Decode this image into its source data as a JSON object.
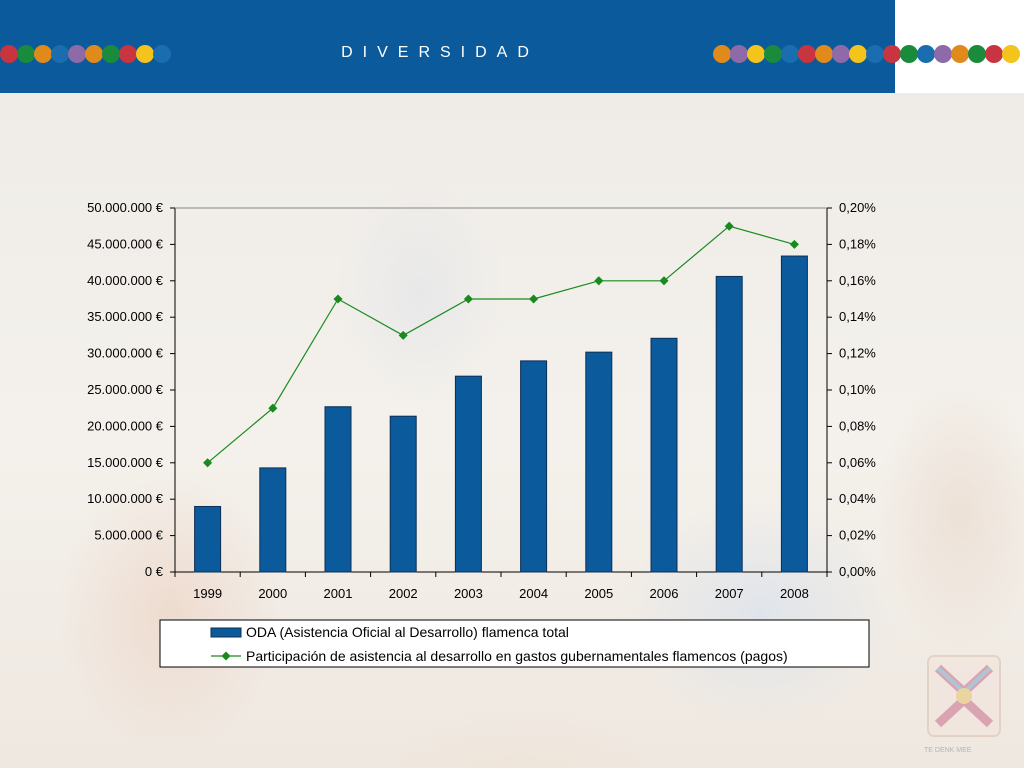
{
  "slide": {
    "title": "DIVERSIDAD",
    "dot_colors_left": [
      "#c8343f",
      "#1a8a3c",
      "#e08a1c",
      "#1a6eb0",
      "#8e6aa8",
      "#e08a1c",
      "#1a8a3c",
      "#c8343f",
      "#f4c31c",
      "#1a6eb0"
    ],
    "dot_colors_right": [
      "#e08a1c",
      "#8e6aa8",
      "#f4c31c",
      "#1a8a3c",
      "#1a6eb0",
      "#c8343f",
      "#e08a1c",
      "#8e6aa8",
      "#f4c31c",
      "#1a6eb0",
      "#c8343f",
      "#1a8a3c",
      "#1a6eb0",
      "#8e6aa8",
      "#e08a1c",
      "#1a8a3c",
      "#c8343f",
      "#f4c31c"
    ],
    "header_color": "#0a5a9c"
  },
  "chart_data": {
    "type": "bar",
    "categories": [
      "1999",
      "2000",
      "2001",
      "2002",
      "2003",
      "2004",
      "2005",
      "2006",
      "2007",
      "2008"
    ],
    "series": [
      {
        "name": "ODA (Asistencia Oficial al Desarrollo) flamenca total",
        "kind": "bar",
        "axis": "left",
        "color": "#0a5a9c",
        "values": [
          9000000,
          14300000,
          22700000,
          21400000,
          26900000,
          29000000,
          30200000,
          32100000,
          40600000,
          43400000
        ]
      },
      {
        "name": "Participación de asistencia al desarrollo en gastos gubernamentales flamencos (pagos)",
        "kind": "line",
        "axis": "right",
        "color": "#1a8a1e",
        "values": [
          0.06,
          0.09,
          0.15,
          0.13,
          0.15,
          0.15,
          0.16,
          0.16,
          0.19,
          0.18
        ]
      }
    ],
    "y_left": {
      "ylim": [
        0,
        50000000
      ],
      "ticks": [
        "0 €",
        "5.000.000 €",
        "10.000.000 €",
        "15.000.000 €",
        "20.000.000 €",
        "25.000.000 €",
        "30.000.000 €",
        "35.000.000 €",
        "40.000.000 €",
        "45.000.000 €",
        "50.000.000 €"
      ]
    },
    "y_right": {
      "ylim": [
        0,
        0.2
      ],
      "ticks": [
        "0,00%",
        "0,02%",
        "0,04%",
        "0,06%",
        "0,08%",
        "0,10%",
        "0,12%",
        "0,14%",
        "0,16%",
        "0,18%",
        "0,20%"
      ]
    },
    "grid": false,
    "legend_position": "bottom"
  }
}
